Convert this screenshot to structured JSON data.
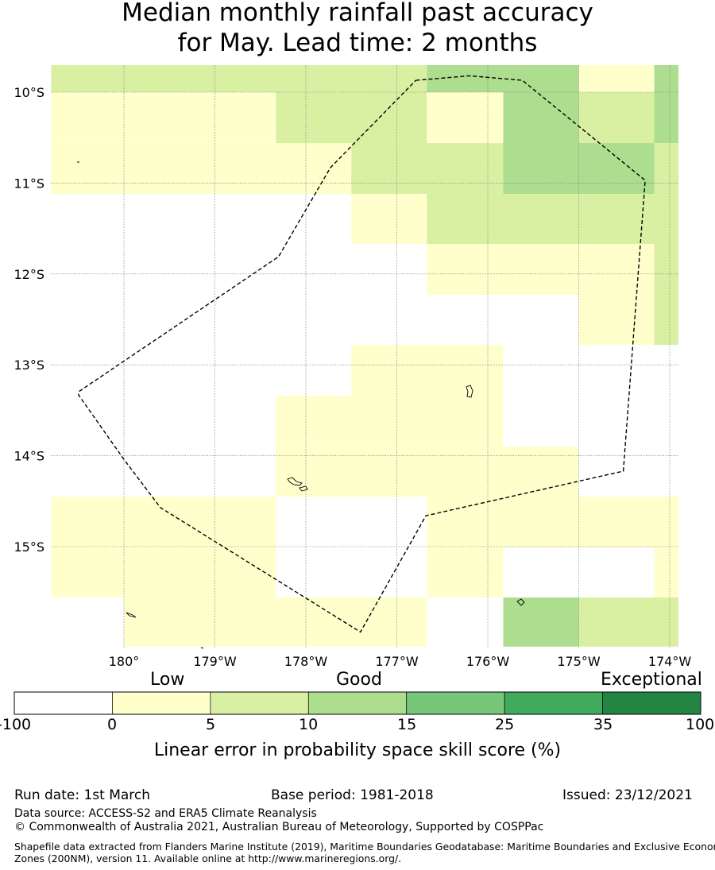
{
  "title": {
    "line1": "Median monthly rainfall past accuracy",
    "line2": "for May. Lead time: 2 months"
  },
  "map": {
    "grid_cells": [
      {
        "lon0": -180.8,
        "lon1": -176.67,
        "lat0": -9.7,
        "lat1": -10.0,
        "cls": 2
      },
      {
        "lon0": -176.67,
        "lon1": -175.0,
        "lat0": -9.7,
        "lat1": -10.0,
        "cls": 3
      },
      {
        "lon0": -175.0,
        "lon1": -174.17,
        "lat0": -9.7,
        "lat1": -10.0,
        "cls": 1
      },
      {
        "lon0": -174.17,
        "lon1": -173.9,
        "lat0": -9.7,
        "lat1": -10.0,
        "cls": 3
      },
      {
        "lon0": -180.8,
        "lon1": -178.33,
        "lat0": -10.0,
        "lat1": -10.56,
        "cls": 1
      },
      {
        "lon0": -178.33,
        "lon1": -176.67,
        "lat0": -10.0,
        "lat1": -10.56,
        "cls": 2
      },
      {
        "lon0": -176.67,
        "lon1": -175.83,
        "lat0": -10.0,
        "lat1": -10.56,
        "cls": 1
      },
      {
        "lon0": -175.83,
        "lon1": -175.0,
        "lat0": -10.0,
        "lat1": -10.56,
        "cls": 3
      },
      {
        "lon0": -175.0,
        "lon1": -174.17,
        "lat0": -10.0,
        "lat1": -10.56,
        "cls": 2
      },
      {
        "lon0": -174.17,
        "lon1": -173.9,
        "lat0": -10.0,
        "lat1": -10.56,
        "cls": 3
      },
      {
        "lon0": -180.8,
        "lon1": -177.5,
        "lat0": -10.56,
        "lat1": -11.12,
        "cls": 1
      },
      {
        "lon0": -177.5,
        "lon1": -175.83,
        "lat0": -10.56,
        "lat1": -11.12,
        "cls": 2
      },
      {
        "lon0": -175.83,
        "lon1": -174.17,
        "lat0": -10.56,
        "lat1": -11.12,
        "cls": 3
      },
      {
        "lon0": -174.17,
        "lon1": -173.9,
        "lat0": -10.56,
        "lat1": -11.12,
        "cls": 2
      },
      {
        "lon0": -177.5,
        "lon1": -176.67,
        "lat0": -11.12,
        "lat1": -11.67,
        "cls": 1
      },
      {
        "lon0": -176.67,
        "lon1": -173.9,
        "lat0": -11.12,
        "lat1": -11.67,
        "cls": 2
      },
      {
        "lon0": -176.67,
        "lon1": -175.0,
        "lat0": -11.67,
        "lat1": -12.23,
        "cls": 1
      },
      {
        "lon0": -175.0,
        "lon1": -174.17,
        "lat0": -11.67,
        "lat1": -12.23,
        "cls": 1
      },
      {
        "lon0": -174.17,
        "lon1": -173.9,
        "lat0": -11.67,
        "lat1": -12.23,
        "cls": 2
      },
      {
        "lon0": -175.0,
        "lon1": -174.17,
        "lat0": -12.23,
        "lat1": -12.78,
        "cls": 1
      },
      {
        "lon0": -174.17,
        "lon1": -173.9,
        "lat0": -12.23,
        "lat1": -12.78,
        "cls": 2
      },
      {
        "lon0": -177.5,
        "lon1": -175.83,
        "lat0": -12.78,
        "lat1": -13.34,
        "cls": 1
      },
      {
        "lon0": -178.33,
        "lon1": -175.83,
        "lat0": -13.34,
        "lat1": -13.9,
        "cls": 1
      },
      {
        "lon0": -178.33,
        "lon1": -175.0,
        "lat0": -13.9,
        "lat1": -14.45,
        "cls": 1
      },
      {
        "lon0": -180.8,
        "lon1": -178.33,
        "lat0": -14.45,
        "lat1": -15.56,
        "cls": 1
      },
      {
        "lon0": -176.67,
        "lon1": -175.0,
        "lat0": -14.45,
        "lat1": -15.01,
        "cls": 1
      },
      {
        "lon0": -175.0,
        "lon1": -173.9,
        "lat0": -14.45,
        "lat1": -15.01,
        "cls": 1
      },
      {
        "lon0": -176.67,
        "lon1": -175.83,
        "lat0": -15.01,
        "lat1": -15.56,
        "cls": 1
      },
      {
        "lon0": -174.17,
        "lon1": -173.9,
        "lat0": -15.01,
        "lat1": -15.56,
        "cls": 1
      },
      {
        "lon0": -180.0,
        "lon1": -176.67,
        "lat0": -15.56,
        "lat1": -16.1,
        "cls": 1
      },
      {
        "lon0": -175.83,
        "lon1": -175.0,
        "lat0": -15.56,
        "lat1": -16.1,
        "cls": 3
      },
      {
        "lon0": -175.0,
        "lon1": -173.9,
        "lat0": -15.56,
        "lat1": -16.1,
        "cls": 2
      }
    ],
    "lat_labels": [
      {
        "lat": -10,
        "label": "10°S"
      },
      {
        "lat": -11,
        "label": "11°S"
      },
      {
        "lat": -12,
        "label": "12°S"
      },
      {
        "lat": -13,
        "label": "13°S"
      },
      {
        "lat": -14,
        "label": "14°S"
      },
      {
        "lat": -15,
        "label": "15°S"
      }
    ],
    "lon_labels": [
      {
        "lon": -180,
        "label": "180°"
      },
      {
        "lon": -179,
        "label": "179°W"
      },
      {
        "lon": -178,
        "label": "178°W"
      },
      {
        "lon": -177,
        "label": "177°W"
      },
      {
        "lon": -176,
        "label": "176°W"
      },
      {
        "lon": -175,
        "label": "175°W"
      },
      {
        "lon": -174,
        "label": "174°W"
      }
    ],
    "eez_boundary": [
      [
        -176.79,
        -9.87
      ],
      [
        -176.2,
        -9.82
      ],
      [
        -175.62,
        -9.87
      ],
      [
        -174.27,
        -10.97
      ],
      [
        -174.51,
        -14.17
      ],
      [
        -176.68,
        -14.66
      ],
      [
        -177.4,
        -15.94
      ],
      [
        -178.7,
        -15.13
      ],
      [
        -179.6,
        -14.57
      ],
      [
        -180.0,
        -14.04
      ],
      [
        -180.5,
        -13.33
      ],
      [
        -180.49,
        -13.29
      ],
      [
        -178.3,
        -11.81
      ],
      [
        -177.73,
        -10.83
      ],
      [
        -176.79,
        -9.87
      ]
    ]
  },
  "colorbar": {
    "categories": [
      "Low",
      "Good",
      "Exceptional"
    ],
    "ticks": [
      "-100",
      "0",
      "5",
      "10",
      "15",
      "25",
      "35",
      "100"
    ],
    "colors": [
      "#ffffff",
      "#ffffcc",
      "#d9f0a3",
      "#addd8e",
      "#78c679",
      "#41ab5d",
      "#238443"
    ],
    "label": "Linear error in probability space skill score (%)"
  },
  "footer": {
    "run_date": "Run date: 1st March",
    "base_period": "Base period: 1981-2018",
    "issued": "Issued: 23/12/2021",
    "data_source": "Data source: ACCESS-S2 and ERA5 Climate Reanalysis",
    "copyright": "© Commonwealth of Australia 2021, Australian Bureau of Meteorology, Supported by COSPPac",
    "shapefile_line1": "Shapefile data extracted from Flanders Marine Institute (2019), Maritime Boundaries Geodatabase: Maritime Boundaries and Exclusive Economic",
    "shapefile_line2": "Zones (200NM), version 11. Available online at http://www.marineregions.org/."
  }
}
